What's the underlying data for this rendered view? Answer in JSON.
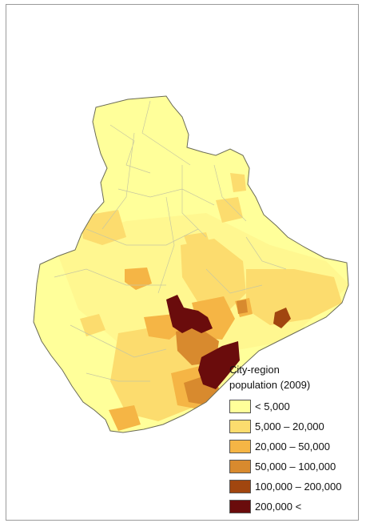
{
  "legend": {
    "title_line1": "City-region",
    "title_line2": "population (2009)",
    "items": [
      {
        "label": "< 5,000",
        "color": "#ffff9a"
      },
      {
        "label": "5,000 – 20,000",
        "color": "#fcdc6e"
      },
      {
        "label": "20,000 – 50,000",
        "color": "#f5b545"
      },
      {
        "label": "50,000 – 100,000",
        "color": "#d88a2e"
      },
      {
        "label": "100,000 – 200,000",
        "color": "#a1460f"
      },
      {
        "label": "200,000 <",
        "color": "#6a0c0c"
      }
    ]
  },
  "colors": {
    "border": "#a9a9a9",
    "background": "#ffffff"
  }
}
